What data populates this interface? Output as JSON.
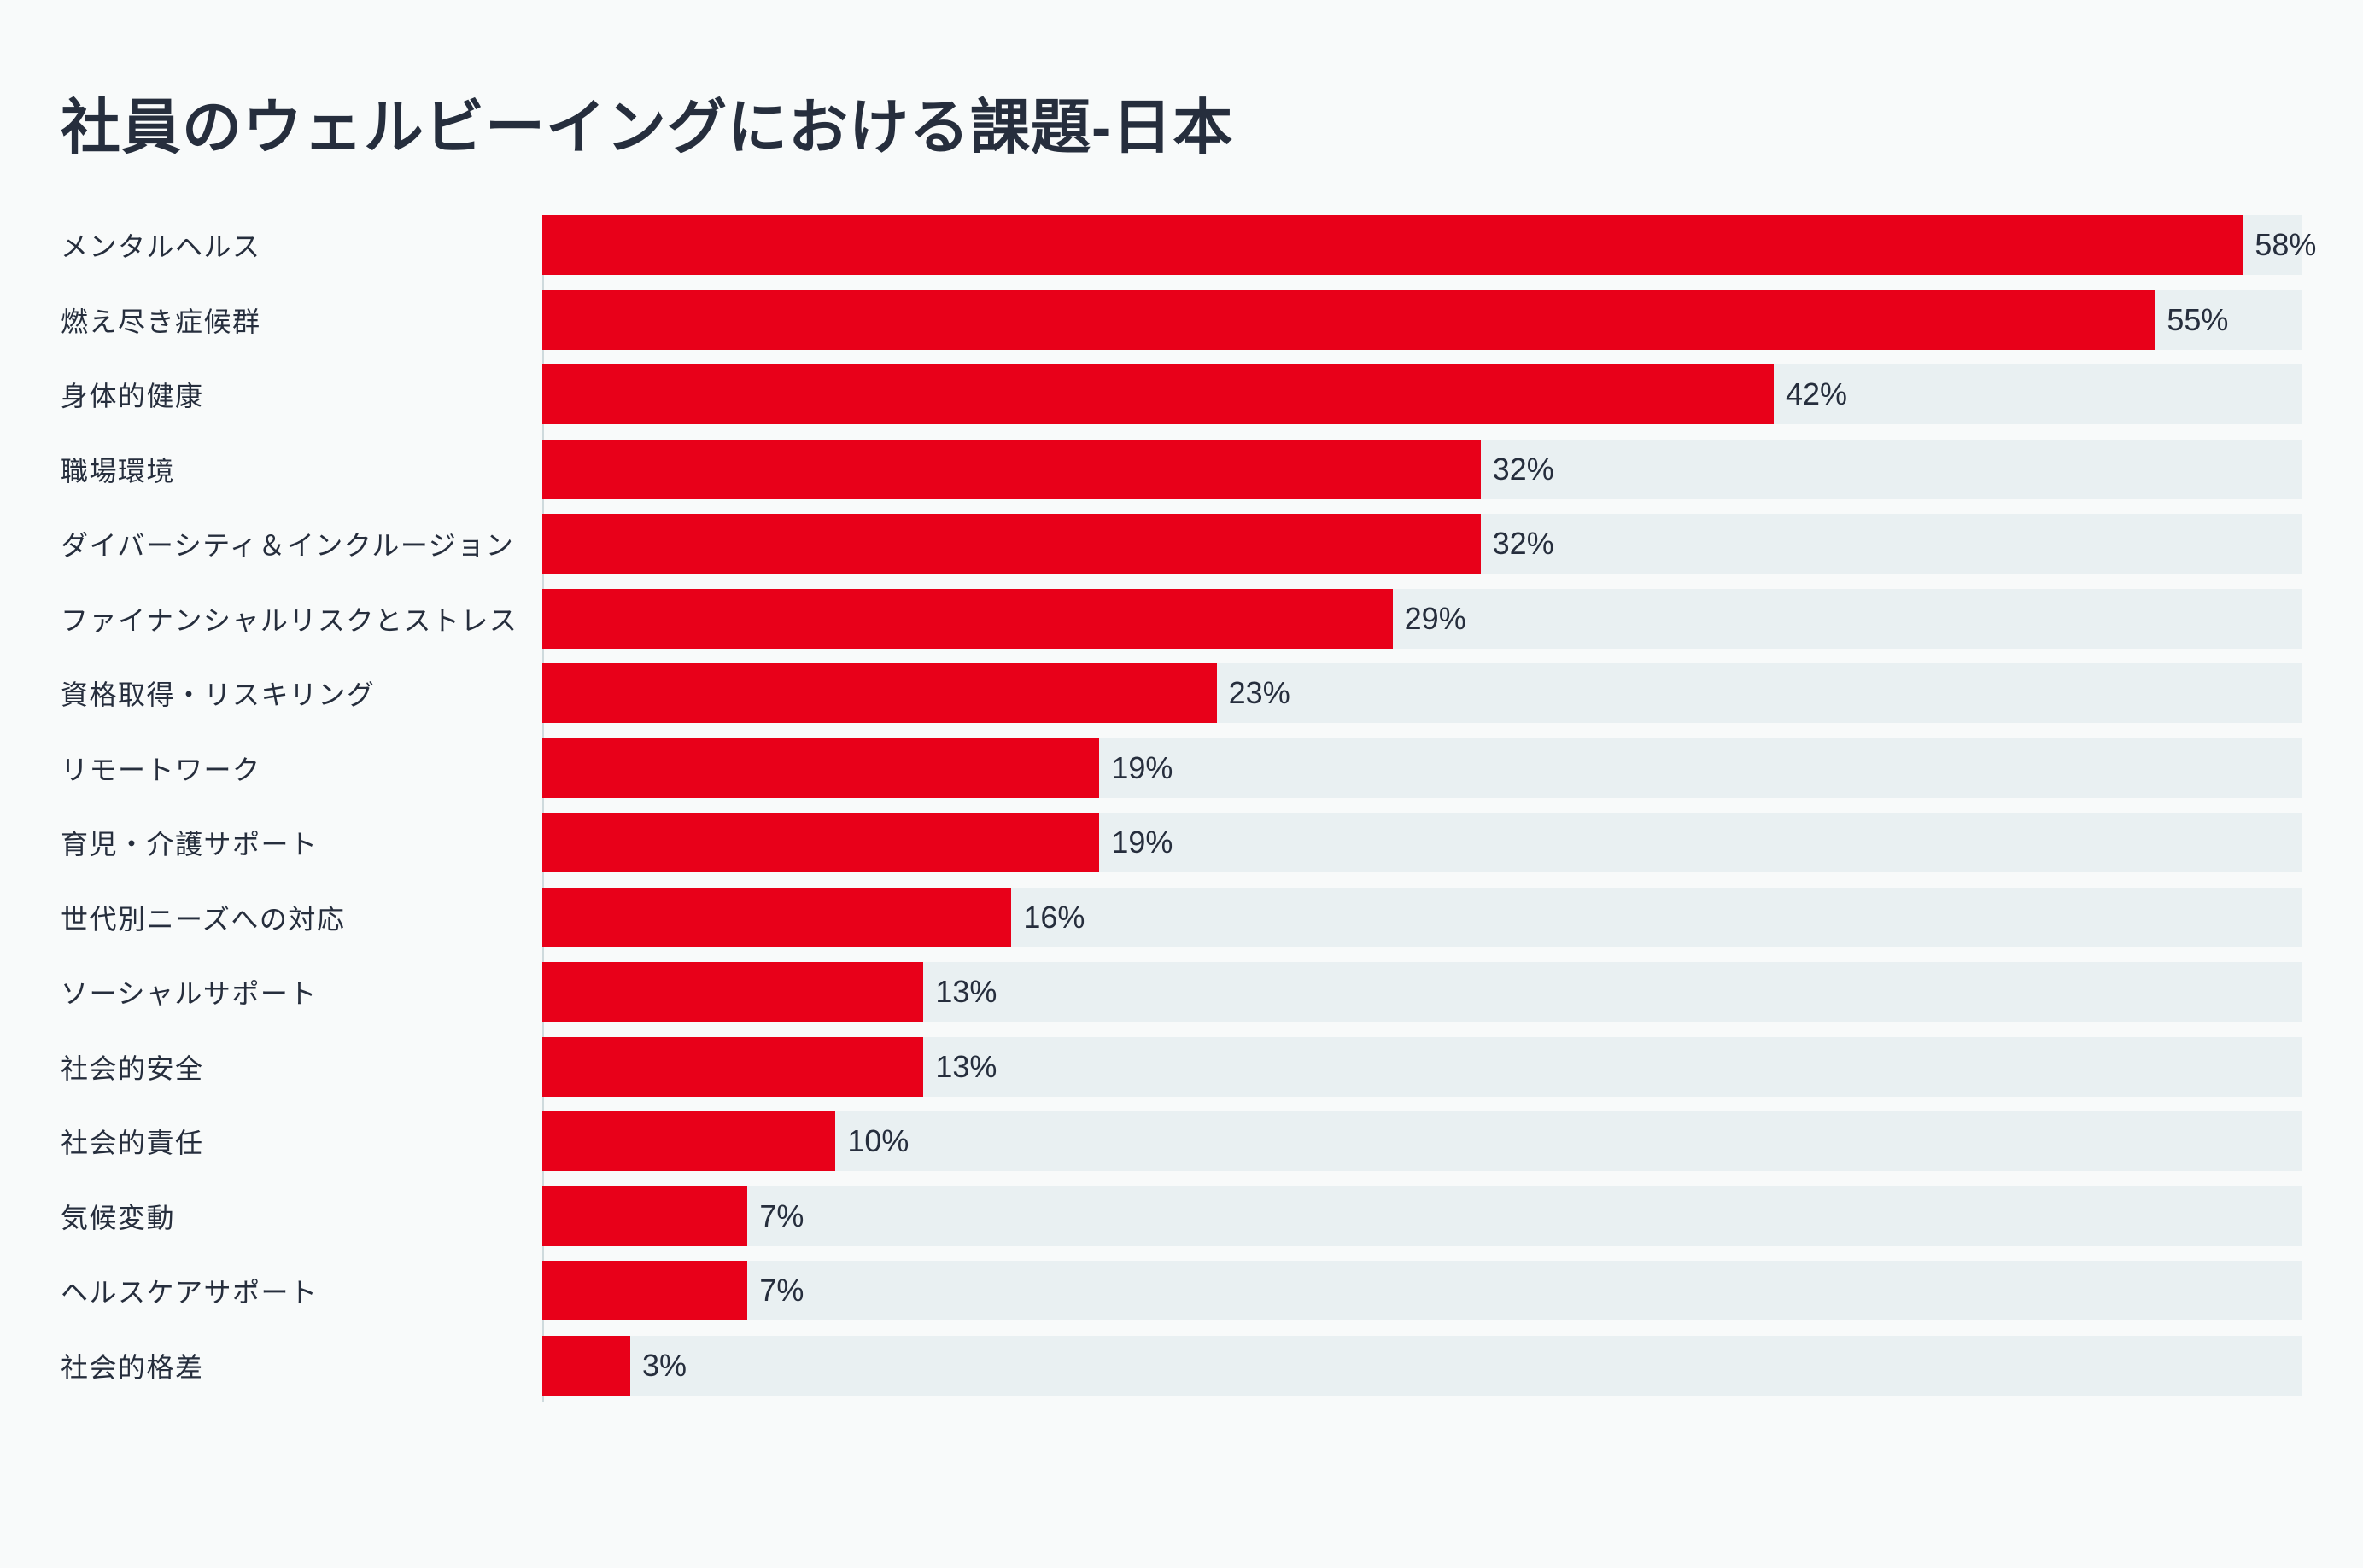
{
  "page": {
    "background_color": "#f8fafa"
  },
  "chart_data": {
    "type": "bar",
    "orientation": "horizontal",
    "title": "社員のウェルビーイングにおける課題-日本",
    "categories": [
      "メンタルヘルス",
      "燃え尽き症候群",
      "身体的健康",
      "職場環境",
      "ダイバーシティ＆インクルージョン",
      "ファイナンシャルリスクとストレス",
      "資格取得・リスキリング",
      "リモートワーク",
      "育児・介護サポート",
      "世代別ニーズへの対応",
      "ソーシャルサポート",
      "社会的安全",
      "社会的責任",
      "気候変動",
      "ヘルスケアサポート",
      "社会的格差"
    ],
    "values": [
      58,
      55,
      42,
      32,
      32,
      29,
      23,
      19,
      19,
      16,
      13,
      13,
      10,
      7,
      7,
      3
    ],
    "value_labels": [
      "58%",
      "55%",
      "42%",
      "32%",
      "32%",
      "29%",
      "23%",
      "19%",
      "19%",
      "16%",
      "13%",
      "13%",
      "10%",
      "7%",
      "7%",
      "3%"
    ],
    "xlabel": "",
    "ylabel": "",
    "xlim": [
      0,
      60
    ],
    "grid": false,
    "legend": null,
    "bar_color": "#e80019",
    "track_color": "#e9f0f2",
    "text_color": "#262e3d",
    "axis_line_color": "#cfdadd"
  }
}
